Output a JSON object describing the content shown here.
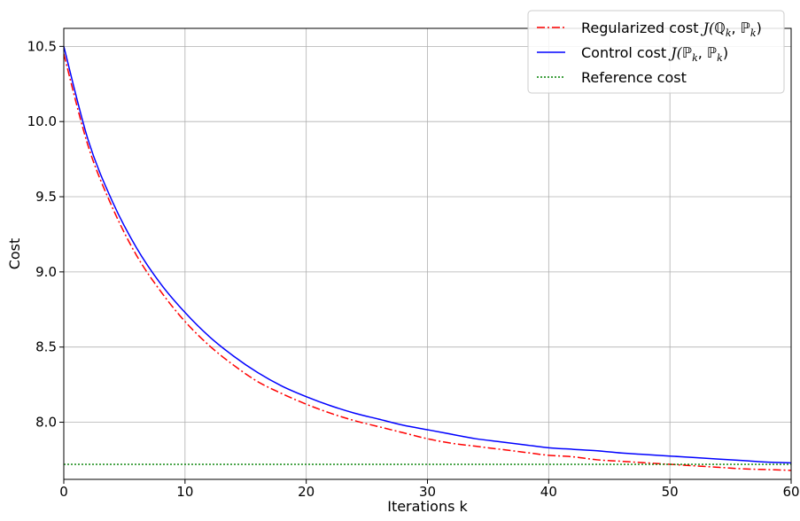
{
  "chart_data": {
    "type": "line",
    "xlabel": "Iterations k",
    "ylabel": "Cost",
    "xlim": [
      0,
      60
    ],
    "ylim": [
      7.75,
      10.5
    ],
    "xticks": [
      0,
      10,
      20,
      30,
      40,
      50,
      60
    ],
    "xtick_labels": [
      "0",
      "10",
      "20",
      "30",
      "40",
      "50",
      "60"
    ],
    "yticks": [
      8.0,
      8.5,
      9.0,
      9.5,
      10.0,
      10.5
    ],
    "ytick_labels": [
      "8.0",
      "8.5",
      "9.0",
      "9.5",
      "10.0",
      "10.5"
    ],
    "grid": true,
    "legend_position": "top-right",
    "series": [
      {
        "name": "Regularized cost J(ℚk, ℙk)",
        "legend_prefix": "Regularized cost ",
        "legend_math": [
          "J(",
          "ℚ",
          "k",
          ", ",
          "ℙ",
          "k",
          ")"
        ],
        "color": "#ff0000",
        "style": "dashdot",
        "x": [
          0,
          2,
          4,
          6,
          8,
          10,
          12,
          14,
          16,
          18,
          20,
          22,
          24,
          26,
          28,
          30,
          32,
          34,
          36,
          38,
          40,
          42,
          44,
          46,
          48,
          50,
          52,
          54,
          56,
          58,
          60
        ],
        "y": [
          10.45,
          9.84,
          9.43,
          9.11,
          8.87,
          8.67,
          8.51,
          8.38,
          8.27,
          8.19,
          8.12,
          8.06,
          8.01,
          7.97,
          7.93,
          7.89,
          7.86,
          7.84,
          7.82,
          7.8,
          7.78,
          7.77,
          7.75,
          7.74,
          7.73,
          7.72,
          7.71,
          7.7,
          7.69,
          7.685,
          7.68
        ]
      },
      {
        "name": "Control cost J(ℙk, ℙk)",
        "legend_prefix": "Control cost ",
        "legend_math": [
          "J(",
          "ℙ",
          "k",
          ", ",
          "ℙ",
          "k",
          ")"
        ],
        "color": "#0000ff",
        "style": "solid",
        "x": [
          0,
          2,
          4,
          6,
          8,
          10,
          12,
          14,
          16,
          18,
          20,
          22,
          24,
          26,
          28,
          30,
          32,
          34,
          36,
          38,
          40,
          42,
          44,
          46,
          48,
          50,
          52,
          54,
          56,
          58,
          60
        ],
        "y": [
          10.5,
          9.88,
          9.47,
          9.16,
          8.92,
          8.73,
          8.57,
          8.44,
          8.33,
          8.24,
          8.17,
          8.11,
          8.06,
          8.02,
          7.98,
          7.95,
          7.92,
          7.89,
          7.87,
          7.85,
          7.83,
          7.82,
          7.81,
          7.795,
          7.785,
          7.775,
          7.765,
          7.755,
          7.745,
          7.735,
          7.73
        ]
      },
      {
        "name": "Reference cost",
        "legend_prefix": "Reference cost",
        "legend_math": [],
        "color": "#008000",
        "style": "dotted",
        "x": [
          0,
          60
        ],
        "y": [
          7.72,
          7.72
        ]
      }
    ]
  }
}
